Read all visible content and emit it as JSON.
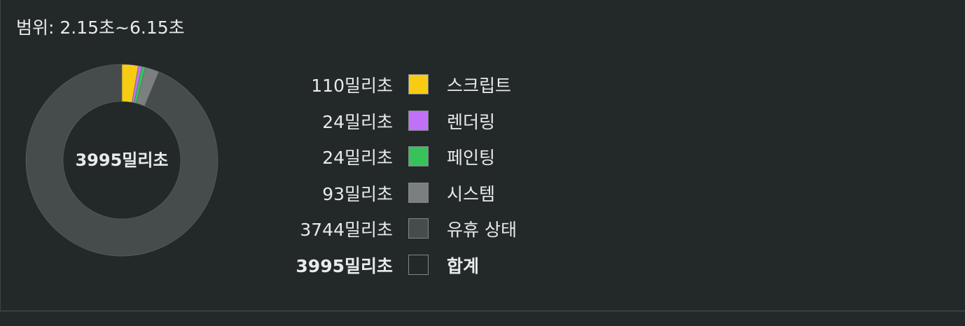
{
  "range": {
    "label": "범위: 2.15초~6.15초"
  },
  "donut": {
    "center_label": "3995밀리초"
  },
  "chart_data": {
    "type": "pie",
    "categories": [
      "스크립트",
      "렌더링",
      "페인팅",
      "시스템",
      "유휴 상태"
    ],
    "values": [
      110,
      24,
      24,
      93,
      3744
    ],
    "colors": [
      "#f9cc14",
      "#c171f5",
      "#38c25a",
      "#7b7f80",
      "#464b4c"
    ],
    "unit": "밀리초",
    "total": 3995,
    "style": "donut"
  },
  "legend": {
    "items": [
      {
        "value": "110밀리초",
        "label": "스크립트",
        "color": "#f9cc14"
      },
      {
        "value": "24밀리초",
        "label": "렌더링",
        "color": "#c171f5"
      },
      {
        "value": "24밀리초",
        "label": "페인팅",
        "color": "#38c25a"
      },
      {
        "value": "93밀리초",
        "label": "시스템",
        "color": "#7b7f80"
      },
      {
        "value": "3744밀리초",
        "label": "유휴 상태",
        "color": "#464b4c"
      }
    ],
    "total": {
      "value": "3995밀리초",
      "label": "합계",
      "color": "transparent"
    }
  }
}
